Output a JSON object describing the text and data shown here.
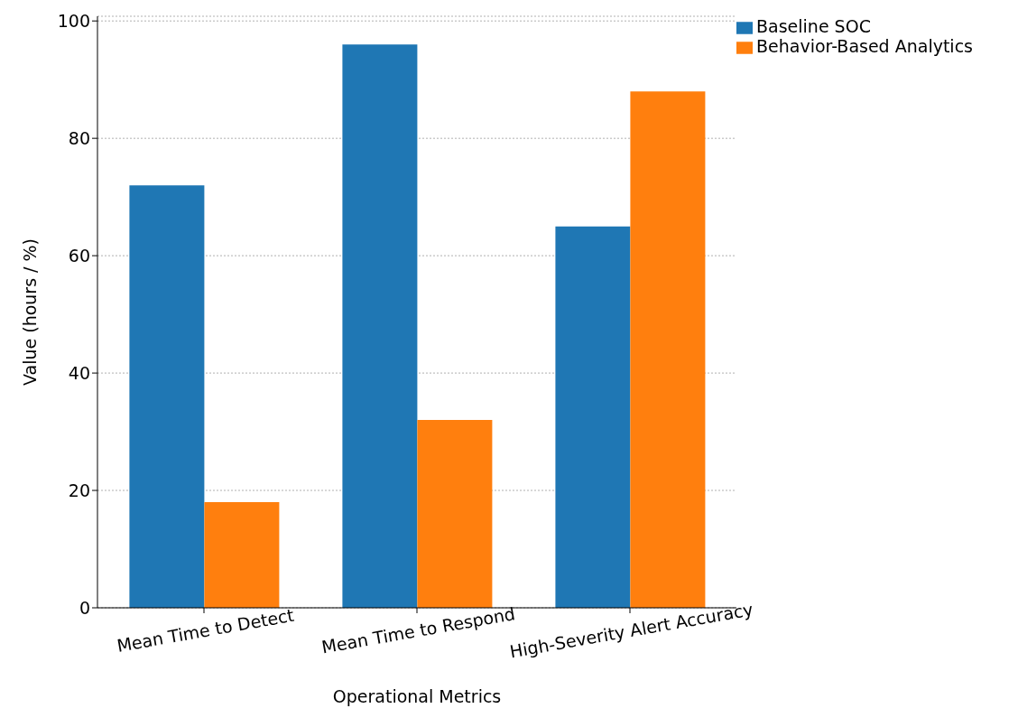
{
  "chart_data": {
    "type": "bar",
    "categories": [
      "Mean Time to Detect",
      "Mean Time to Respond",
      "High-Severity Alert Accuracy"
    ],
    "series": [
      {
        "name": "Baseline SOC",
        "color": "#1f77b4",
        "values": [
          72,
          96,
          65
        ]
      },
      {
        "name": "Behavior-Based Analytics",
        "color": "#ff7f0e",
        "values": [
          18,
          32,
          88
        ]
      }
    ],
    "xlabel": "Operational Metrics",
    "ylabel": "Value (hours / %)",
    "ylim": [
      0,
      100.8
    ],
    "yticks": [
      0,
      20,
      40,
      60,
      80,
      100
    ],
    "grid": "y",
    "legend": "top right"
  }
}
